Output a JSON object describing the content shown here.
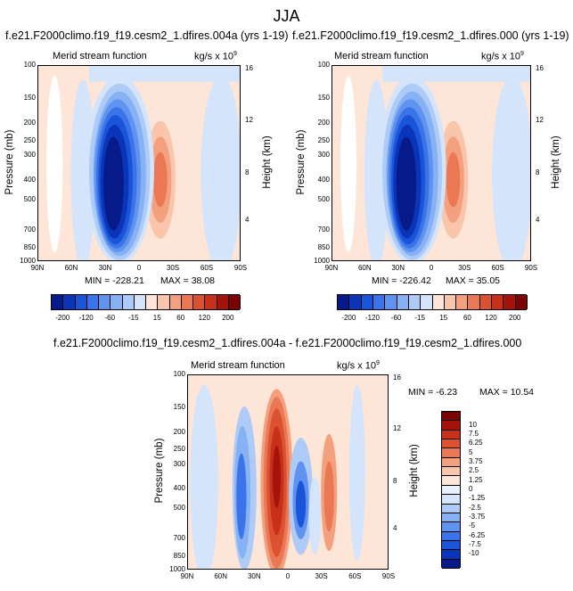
{
  "figure": {
    "title": "JJA"
  },
  "colors": {
    "blue_scale": [
      "#061a8a",
      "#0b35b8",
      "#1a55d9",
      "#3a74e8",
      "#5f93ef",
      "#86b2f4",
      "#aecbf8",
      "#d3e4fb"
    ],
    "red_scale": [
      "#fde5d8",
      "#f9c6ac",
      "#f3a07f",
      "#ea7854",
      "#db5230",
      "#c8301a",
      "#a5140c",
      "#7a0404"
    ],
    "zero_band": "#e9f1fd"
  },
  "chart_data": [
    {
      "type": "heatmap",
      "panel_title": "f.e21.F2000climo.f19_f19.cesm2_1.dfires.004a (yrs 1-19)",
      "subtitle_left": "Merid stream function",
      "units": "kg/s x 10",
      "units_exponent": "9",
      "ylabel": "Pressure (mb)",
      "ylabel_right": "Height (km)",
      "x_ticks": [
        "90N",
        "60N",
        "30N",
        "0",
        "30S",
        "60S",
        "90S"
      ],
      "y_ticks": [
        "100",
        "150",
        "200",
        "250",
        "300",
        "400",
        "500",
        "700",
        "850",
        "1000"
      ],
      "y_ticks_right": [
        "16",
        "12",
        "8",
        "4"
      ],
      "min_label": "MIN = -228.21",
      "max_label": "MAX = 38.08",
      "colorbar_labels": [
        "-200",
        "-120",
        "-60",
        "-15",
        "15",
        "60",
        "120",
        "200"
      ],
      "contour_levels": [
        -200,
        -160,
        -120,
        -90,
        -60,
        -40,
        -15,
        0,
        15,
        40,
        60,
        90,
        120,
        160,
        200
      ]
    },
    {
      "type": "heatmap",
      "panel_title": "f.e21.F2000climo.f19_f19.cesm2_1.dfires.000 (yrs 1-19)",
      "subtitle_left": "Merid stream function",
      "units": "kg/s x 10",
      "units_exponent": "9",
      "ylabel": "Pressure (mb)",
      "ylabel_right": "Height (km)",
      "x_ticks": [
        "90N",
        "60N",
        "30N",
        "0",
        "30S",
        "60S",
        "90S"
      ],
      "y_ticks": [
        "100",
        "150",
        "200",
        "250",
        "300",
        "400",
        "500",
        "700",
        "850",
        "1000"
      ],
      "y_ticks_right": [
        "16",
        "12",
        "8",
        "4"
      ],
      "min_label": "MIN = -226.42",
      "max_label": "MAX = 35.05"
    },
    {
      "type": "heatmap",
      "panel_title": "f.e21.F2000climo.f19_f19.cesm2_1.dfires.004a - f.e21.F2000climo.f19_f19.cesm2_1.dfires.000",
      "subtitle_left": "Merid stream function",
      "units": "kg/s x 10",
      "units_exponent": "9",
      "ylabel": "Pressure (mb)",
      "ylabel_right": "Height (km)",
      "x_ticks": [
        "90N",
        "60N",
        "30N",
        "0",
        "30S",
        "60S",
        "90S"
      ],
      "y_ticks": [
        "100",
        "150",
        "200",
        "250",
        "300",
        "400",
        "500",
        "700",
        "850",
        "1000"
      ],
      "y_ticks_right": [
        "16",
        "12",
        "8",
        "4"
      ],
      "min_label": "MIN = -6.23",
      "max_label": "MAX = 10.54",
      "colorbar_labels": [
        "10",
        "7.5",
        "6.25",
        "5",
        "3.75",
        "2.5",
        "1.25",
        "0",
        "-1.25",
        "-2.5",
        "-3.75",
        "-5",
        "-6.25",
        "-7.5",
        "-10"
      ]
    }
  ]
}
